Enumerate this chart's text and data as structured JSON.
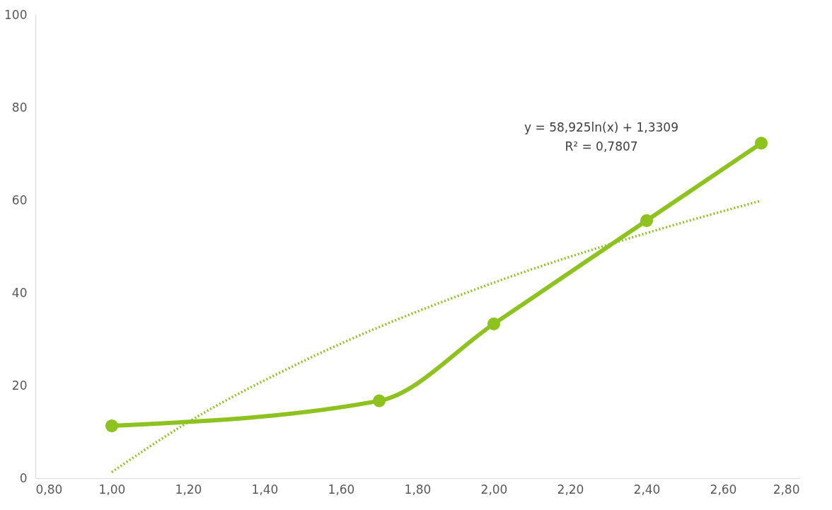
{
  "chart_data": {
    "type": "line",
    "x": [
      1.0,
      1.7,
      2.0,
      2.4,
      2.7
    ],
    "series": [
      {
        "color": "#8dc21f",
        "values": [
          11.3,
          16.7,
          33.3,
          55.6,
          72.3
        ],
        "marker": "circle",
        "line_style": "solid"
      },
      {
        "color": "#8dc21f",
        "x": [
          1.0,
          1.2,
          1.5,
          2.0,
          2.4,
          2.7
        ],
        "values": [
          1.3,
          12.1,
          25.2,
          42.2,
          52.9,
          59.9
        ],
        "marker": "none",
        "line_style": "dotted"
      }
    ],
    "xlim": [
      0.8,
      2.8
    ],
    "ylim": [
      0,
      100
    ],
    "xticks": [
      {
        "value": 0.8,
        "label": "0,80"
      },
      {
        "value": 1.0,
        "label": "1,00"
      },
      {
        "value": 1.2,
        "label": "1,20"
      },
      {
        "value": 1.4,
        "label": "1,40"
      },
      {
        "value": 1.6,
        "label": "1,60"
      },
      {
        "value": 1.8,
        "label": "1,80"
      },
      {
        "value": 2.0,
        "label": "2,00"
      },
      {
        "value": 2.2,
        "label": "2,20"
      },
      {
        "value": 2.4,
        "label": "2,40"
      },
      {
        "value": 2.6,
        "label": "2,60"
      },
      {
        "value": 2.8,
        "label": "2,80"
      }
    ],
    "yticks": [
      0,
      20,
      40,
      60,
      80,
      100
    ],
    "annotations": [
      "y = 58,925ln(x) + 1,3309",
      "R² = 0,7807"
    ],
    "grid": false,
    "legend": false
  }
}
